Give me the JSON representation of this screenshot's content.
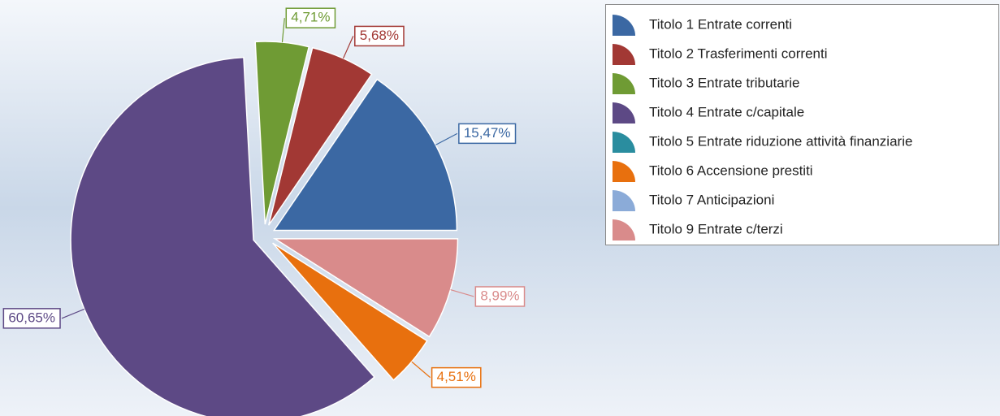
{
  "chart_data": {
    "type": "pie",
    "categories": [
      "Titolo 1 Entrate correnti",
      "Titolo 2 Trasferimenti correnti",
      "Titolo 3 Entrate tributarie",
      "Titolo 4 Entrate c/capitale",
      "Titolo 5 Entrate riduzione attività finanziarie",
      "Titolo 6 Accensione prestiti",
      "Titolo 7 Anticipazioni",
      "Titolo 9 Entrate c/terzi"
    ],
    "values": [
      15.47,
      5.68,
      4.71,
      60.65,
      0,
      4.51,
      0,
      8.99
    ],
    "value_labels": [
      "15,47%",
      "5,68%",
      "4,71%",
      "60,65%",
      null,
      "4,51%",
      null,
      "8,99%"
    ],
    "colors": [
      "#3b68a3",
      "#a23834",
      "#6f9b34",
      "#5d4985",
      "#2a8d9f",
      "#e8700e",
      "#8babd8",
      "#d98b8b"
    ],
    "legend": "top-right"
  }
}
